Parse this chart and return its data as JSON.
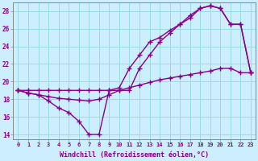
{
  "xlabel": "Windchill (Refroidissement éolien,°C)",
  "bg_color": "#cceeff",
  "line_color": "#880088",
  "xlim": [
    -0.5,
    23.5
  ],
  "ylim": [
    13.5,
    29.0
  ],
  "xticks": [
    0,
    1,
    2,
    3,
    4,
    5,
    6,
    7,
    8,
    9,
    10,
    11,
    12,
    13,
    14,
    15,
    16,
    17,
    18,
    19,
    20,
    21,
    22,
    23
  ],
  "yticks": [
    14,
    16,
    18,
    20,
    22,
    24,
    26,
    28
  ],
  "grid_color": "#99dddd",
  "line1_x": [
    0,
    1,
    2,
    3,
    4,
    5,
    6,
    7,
    8,
    9,
    10,
    11,
    12,
    13,
    14,
    15,
    16,
    17,
    18,
    19,
    20,
    21,
    22,
    23
  ],
  "line1_y": [
    19.0,
    19.0,
    19.0,
    19.0,
    19.0,
    19.0,
    19.0,
    19.0,
    19.0,
    19.0,
    19.0,
    19.0,
    21.5,
    23.0,
    24.5,
    25.5,
    26.5,
    27.2,
    28.3,
    28.6,
    28.3,
    26.5,
    26.5,
    21.0
  ],
  "line2_x": [
    0,
    1,
    2,
    3,
    4,
    5,
    6,
    7,
    8,
    9,
    10,
    11,
    12,
    13,
    14,
    15,
    16,
    17,
    18,
    19,
    20,
    21,
    22,
    23
  ],
  "line2_y": [
    19.0,
    18.7,
    18.5,
    17.8,
    17.0,
    16.5,
    15.5,
    14.0,
    14.0,
    19.0,
    19.3,
    21.5,
    23.0,
    24.5,
    25.0,
    25.8,
    26.5,
    27.5,
    28.3,
    28.6,
    28.3,
    26.5,
    26.5,
    21.0
  ],
  "line3_x": [
    0,
    1,
    2,
    3,
    4,
    5,
    6,
    7,
    8,
    9,
    10,
    11,
    12,
    13,
    14,
    15,
    16,
    17,
    18,
    19,
    20,
    21,
    22,
    23
  ],
  "line3_y": [
    19.0,
    18.7,
    18.5,
    18.3,
    18.1,
    18.0,
    17.9,
    17.8,
    18.0,
    18.5,
    19.0,
    19.3,
    19.6,
    19.9,
    20.2,
    20.4,
    20.6,
    20.8,
    21.0,
    21.2,
    21.5,
    21.5,
    21.0,
    21.0
  ]
}
